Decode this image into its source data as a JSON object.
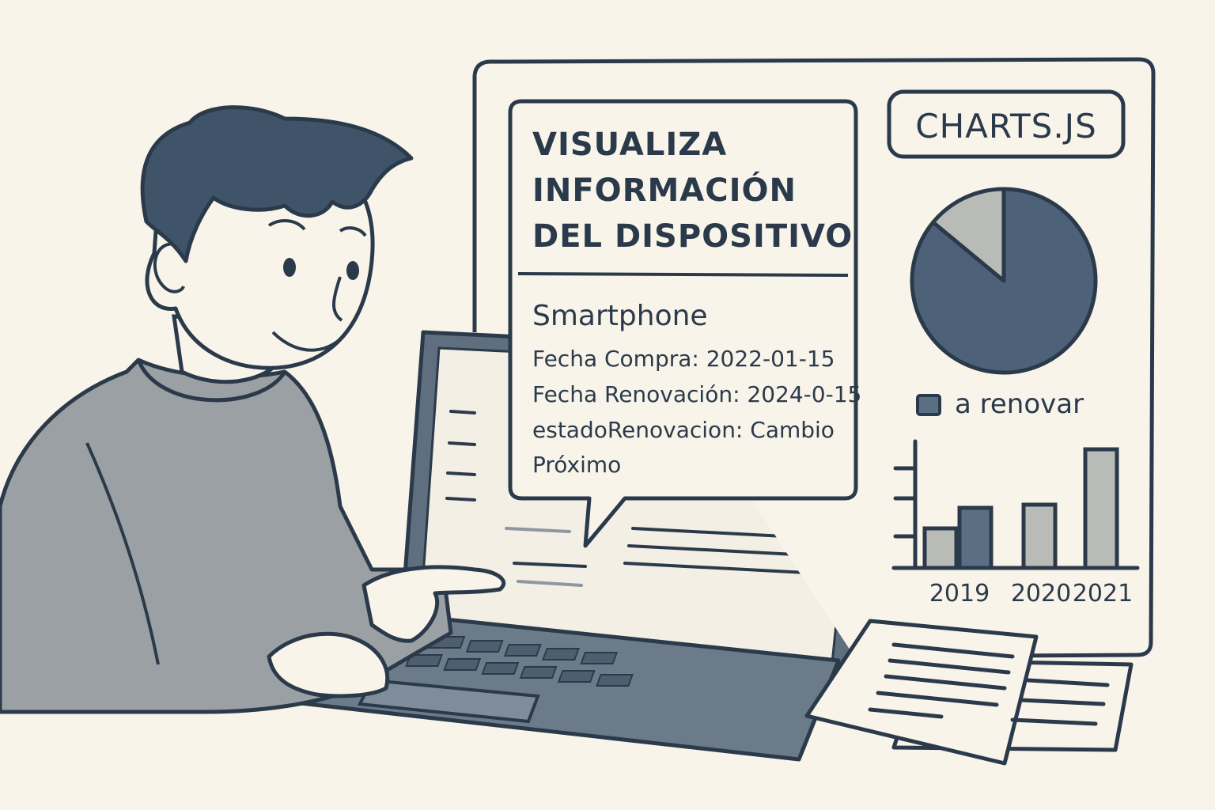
{
  "popup": {
    "title_lines": [
      "VISUALIZA",
      "INFORMACIÓN",
      "DEL DISPOSITIVO"
    ],
    "device": "Smartphone",
    "fields": [
      "Fecha Compra: 2022-01-15",
      "Fecha Renovación: 2024-0-15",
      "estadoRenovacion: Cambio",
      "Próximo"
    ]
  },
  "panel": {
    "badge": "CHARTS.JS",
    "legend_label": "a renovar"
  },
  "chart_data": [
    {
      "type": "pie",
      "values": [
        0.86,
        0.14
      ],
      "colors": [
        "#4d6278",
        "#b9bbb6"
      ]
    },
    {
      "type": "bar",
      "categories": [
        "2019",
        "2020",
        "2021"
      ],
      "series": [
        {
          "values": [
            2.5,
            4,
            7.5
          ]
        },
        {
          "values": [
            3.8,
            null,
            null
          ]
        }
      ],
      "colors": [
        "#b9bbb6",
        "#5b6f84"
      ],
      "ylim": [
        0,
        10
      ]
    }
  ],
  "colors": {
    "ink": "#2b3a4a",
    "background": "#f8f4ea",
    "shirt": "#9aa0a3",
    "hair": "#3f5468",
    "laptop": "#5f6f7f"
  }
}
